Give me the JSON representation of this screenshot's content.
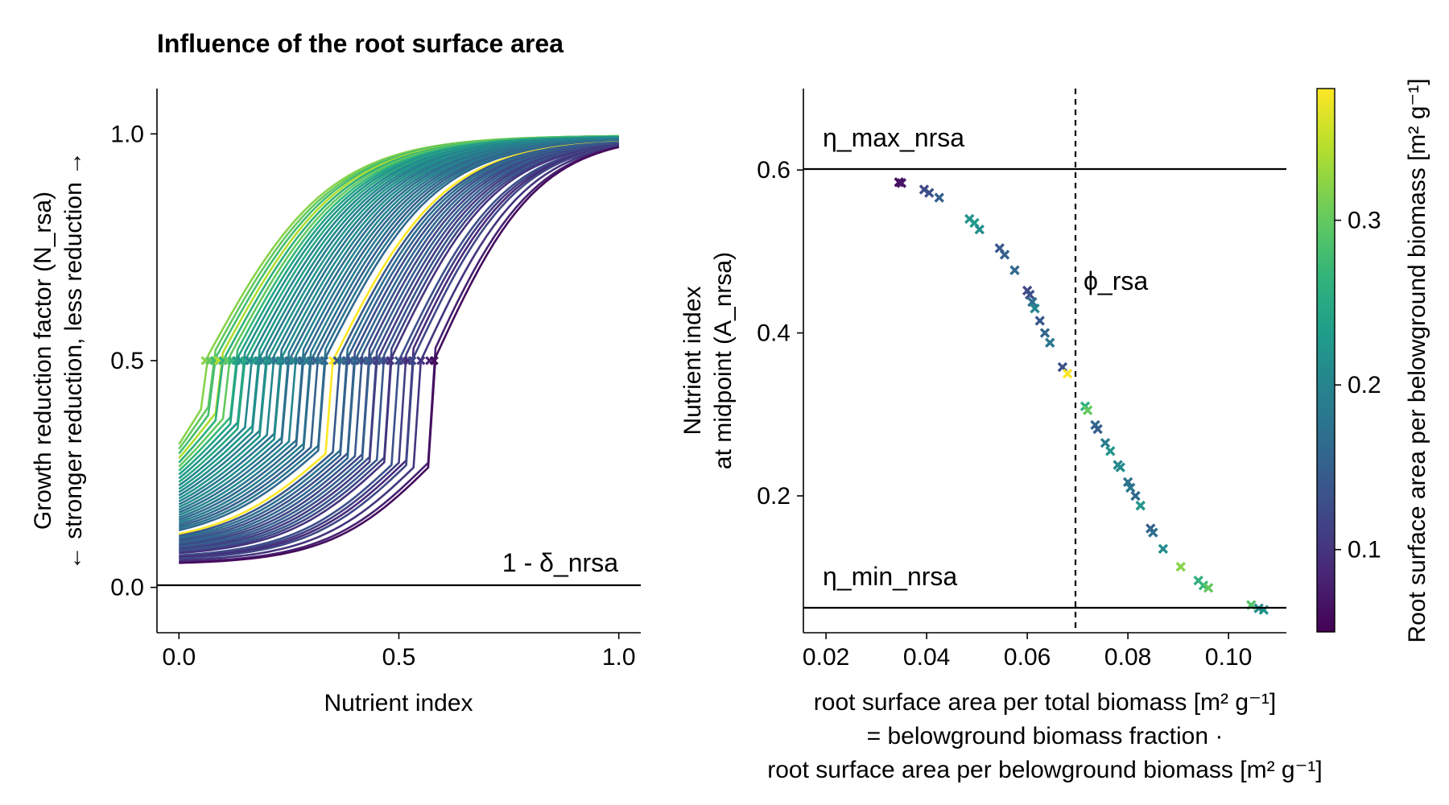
{
  "chart_data": [
    {
      "type": "line",
      "title": "Influence of the root surface area",
      "xlabel": "Nutrient index",
      "ylabel_lines": [
        "Growth reduction factor (N_rsa)",
        "← stronger reduction, less reduction →"
      ],
      "xlim": [
        -0.05,
        1.05
      ],
      "ylim": [
        -0.1,
        1.1
      ],
      "xticks": [
        0.0,
        0.5,
        1.0
      ],
      "xtick_labels": [
        "0.0",
        "0.5",
        "1.0"
      ],
      "yticks": [
        0.0,
        0.5,
        1.0
      ],
      "ytick_labels": [
        "0.0",
        "0.5",
        "1.0"
      ],
      "hline": {
        "y": 0.0,
        "label": "1 - δ_nrsa"
      },
      "grid": false,
      "midpoint_y": 0.5,
      "curve_midpoints_x": [
        0.06,
        0.07,
        0.08,
        0.09,
        0.1,
        0.11,
        0.12,
        0.13,
        0.14,
        0.15,
        0.16,
        0.17,
        0.18,
        0.19,
        0.2,
        0.21,
        0.22,
        0.23,
        0.24,
        0.25,
        0.26,
        0.27,
        0.28,
        0.29,
        0.3,
        0.31,
        0.32,
        0.33,
        0.35,
        0.36,
        0.37,
        0.38,
        0.39,
        0.4,
        0.41,
        0.42,
        0.43,
        0.44,
        0.45,
        0.46,
        0.47,
        0.48,
        0.5,
        0.51,
        0.52,
        0.53,
        0.55,
        0.57,
        0.58
      ],
      "curve_root_surface_area": [
        0.32,
        0.3,
        0.28,
        0.34,
        0.26,
        0.3,
        0.27,
        0.24,
        0.22,
        0.25,
        0.2,
        0.23,
        0.21,
        0.19,
        0.22,
        0.2,
        0.18,
        0.21,
        0.19,
        0.17,
        0.2,
        0.18,
        0.16,
        0.19,
        0.17,
        0.15,
        0.18,
        0.16,
        0.38,
        0.14,
        0.17,
        0.15,
        0.13,
        0.16,
        0.14,
        0.12,
        0.15,
        0.13,
        0.11,
        0.14,
        0.12,
        0.1,
        0.13,
        0.11,
        0.09,
        0.12,
        0.1,
        0.08,
        0.06
      ],
      "colorbar": {
        "label": "Root surface area per belowground biomass [m² g⁻¹]",
        "colormap": "viridis",
        "range": [
          0.05,
          0.38
        ],
        "ticks": [
          0.1,
          0.2,
          0.3
        ],
        "tick_labels": [
          "0.1",
          "0.2",
          "0.3"
        ]
      }
    },
    {
      "type": "scatter",
      "xlabel_lines": [
        "root surface area per total biomass [m² g⁻¹]",
        "= belowground biomass fraction ·",
        "root surface area per belowground biomass [m² g⁻¹]"
      ],
      "ylabel_lines": [
        "Nutrient index",
        "at midpoint (A_nrsa)"
      ],
      "xlim": [
        0.0155,
        0.1115
      ],
      "ylim": [
        0.032,
        0.7
      ],
      "xticks": [
        0.02,
        0.04,
        0.06,
        0.08,
        0.1
      ],
      "xtick_labels": [
        "0.02",
        "0.04",
        "0.06",
        "0.08",
        "0.10"
      ],
      "yticks": [
        0.2,
        0.4,
        0.6
      ],
      "ytick_labels": [
        "0.2",
        "0.4",
        "0.6"
      ],
      "hlines": [
        {
          "y": 0.6,
          "label": "η_max_nrsa"
        },
        {
          "y": 0.05,
          "label": "η_min_nrsa"
        }
      ],
      "vline": {
        "x": 0.07,
        "label": "ϕ_rsa"
      },
      "marker": "x",
      "grid": false,
      "points": [
        {
          "x": 0.0345,
          "y": 0.585,
          "c": 0.06
        },
        {
          "x": 0.035,
          "y": 0.584,
          "c": 0.07
        },
        {
          "x": 0.0395,
          "y": 0.576,
          "c": 0.12
        },
        {
          "x": 0.0405,
          "y": 0.572,
          "c": 0.13
        },
        {
          "x": 0.0425,
          "y": 0.566,
          "c": 0.15
        },
        {
          "x": 0.0485,
          "y": 0.54,
          "c": 0.22
        },
        {
          "x": 0.0495,
          "y": 0.535,
          "c": 0.23
        },
        {
          "x": 0.0505,
          "y": 0.527,
          "c": 0.21
        },
        {
          "x": 0.0545,
          "y": 0.504,
          "c": 0.14
        },
        {
          "x": 0.0555,
          "y": 0.496,
          "c": 0.15
        },
        {
          "x": 0.0575,
          "y": 0.477,
          "c": 0.16
        },
        {
          "x": 0.06,
          "y": 0.452,
          "c": 0.12
        },
        {
          "x": 0.0605,
          "y": 0.447,
          "c": 0.13
        },
        {
          "x": 0.061,
          "y": 0.438,
          "c": 0.17
        },
        {
          "x": 0.0615,
          "y": 0.43,
          "c": 0.2
        },
        {
          "x": 0.0625,
          "y": 0.415,
          "c": 0.14
        },
        {
          "x": 0.0635,
          "y": 0.4,
          "c": 0.16
        },
        {
          "x": 0.0645,
          "y": 0.388,
          "c": 0.18
        },
        {
          "x": 0.067,
          "y": 0.358,
          "c": 0.13
        },
        {
          "x": 0.068,
          "y": 0.35,
          "c": 0.38
        },
        {
          "x": 0.0715,
          "y": 0.31,
          "c": 0.26
        },
        {
          "x": 0.072,
          "y": 0.305,
          "c": 0.3
        },
        {
          "x": 0.0735,
          "y": 0.287,
          "c": 0.16
        },
        {
          "x": 0.074,
          "y": 0.282,
          "c": 0.15
        },
        {
          "x": 0.0755,
          "y": 0.265,
          "c": 0.19
        },
        {
          "x": 0.0765,
          "y": 0.255,
          "c": 0.22
        },
        {
          "x": 0.078,
          "y": 0.238,
          "c": 0.2
        },
        {
          "x": 0.0785,
          "y": 0.235,
          "c": 0.21
        },
        {
          "x": 0.08,
          "y": 0.217,
          "c": 0.17
        },
        {
          "x": 0.0805,
          "y": 0.21,
          "c": 0.18
        },
        {
          "x": 0.0815,
          "y": 0.2,
          "c": 0.16
        },
        {
          "x": 0.0825,
          "y": 0.188,
          "c": 0.22
        },
        {
          "x": 0.0845,
          "y": 0.16,
          "c": 0.15
        },
        {
          "x": 0.085,
          "y": 0.155,
          "c": 0.17
        },
        {
          "x": 0.087,
          "y": 0.135,
          "c": 0.21
        },
        {
          "x": 0.0905,
          "y": 0.113,
          "c": 0.32
        },
        {
          "x": 0.094,
          "y": 0.096,
          "c": 0.26
        },
        {
          "x": 0.095,
          "y": 0.09,
          "c": 0.27
        },
        {
          "x": 0.096,
          "y": 0.087,
          "c": 0.3
        },
        {
          "x": 0.1045,
          "y": 0.066,
          "c": 0.29
        },
        {
          "x": 0.106,
          "y": 0.062,
          "c": 0.21
        },
        {
          "x": 0.107,
          "y": 0.06,
          "c": 0.22
        }
      ]
    }
  ]
}
